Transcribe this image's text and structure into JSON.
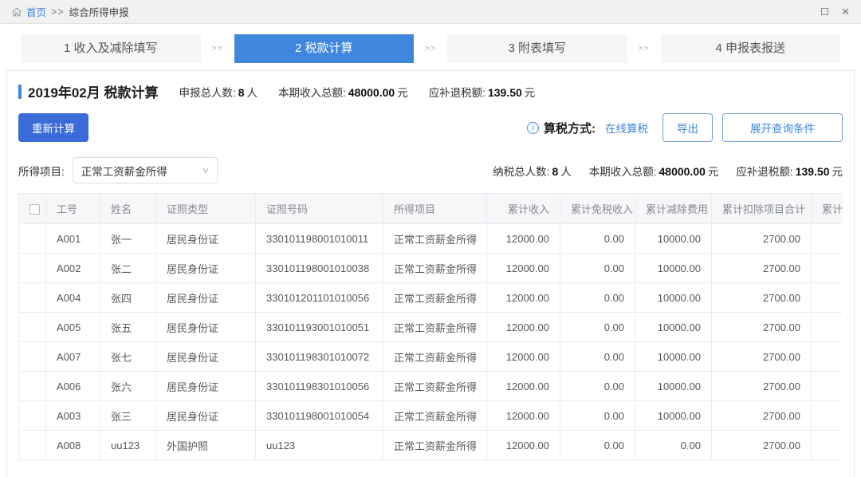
{
  "colors": {
    "accent_blue": "#3e86de",
    "primary_button_blue": "#3a6bd8",
    "table_header_bg": "#f6f7f9",
    "topbar_bg": "#f1f1f2"
  },
  "breadcrumb": {
    "home": "首页",
    "separator": ">>",
    "current": "综合所得申报"
  },
  "window_controls": {
    "close": "✕"
  },
  "steps": {
    "separator": ">>",
    "active_index": 1,
    "items": [
      {
        "label": "1 收入及减除填写"
      },
      {
        "label": "2 税款计算"
      },
      {
        "label": "3 附表填写"
      },
      {
        "label": "4 申报表报送"
      }
    ]
  },
  "period_header": {
    "title": "2019年02月 税款计算",
    "stats": [
      {
        "label": "申报总人数:",
        "value": "8",
        "unit": "人"
      },
      {
        "label": "本期收入总额:",
        "value": "48000.00",
        "unit": "元"
      },
      {
        "label": "应补退税额:",
        "value": "139.50",
        "unit": "元"
      }
    ]
  },
  "toolbar": {
    "recalculate_label": "重新计算",
    "info_icon": "i",
    "tax_mode_label": "算税方式:",
    "tax_mode_value": "在线算税",
    "export_label": "导出",
    "expand_query_label": "展开查询条件"
  },
  "filter": {
    "label": "所得项目:",
    "selected_option": "正常工资薪金所得",
    "chevron": "∨",
    "stats": [
      {
        "label": "纳税总人数:",
        "value": "8",
        "unit": "人"
      },
      {
        "label": "本期收入总额:",
        "value": "48000.00",
        "unit": "元"
      },
      {
        "label": "应补退税额:",
        "value": "139.50",
        "unit": "元"
      }
    ]
  },
  "table": {
    "columns": [
      "工号",
      "姓名",
      "证照类型",
      "证照号码",
      "所得项目",
      "累计收入",
      "累计免税收入",
      "累计减除费用",
      "累计扣除项目合计",
      "累计准"
    ],
    "rows": [
      [
        "A001",
        "张一",
        "居民身份证",
        "330101198001010011",
        "正常工资薪金所得",
        "12000.00",
        "0.00",
        "10000.00",
        "2700.00",
        ""
      ],
      [
        "A002",
        "张二",
        "居民身份证",
        "330101198001010038",
        "正常工资薪金所得",
        "12000.00",
        "0.00",
        "10000.00",
        "2700.00",
        ""
      ],
      [
        "A004",
        "张四",
        "居民身份证",
        "330101201101010056",
        "正常工资薪金所得",
        "12000.00",
        "0.00",
        "10000.00",
        "2700.00",
        ""
      ],
      [
        "A005",
        "张五",
        "居民身份证",
        "330101193001010051",
        "正常工资薪金所得",
        "12000.00",
        "0.00",
        "10000.00",
        "2700.00",
        ""
      ],
      [
        "A007",
        "张七",
        "居民身份证",
        "330101198301010072",
        "正常工资薪金所得",
        "12000.00",
        "0.00",
        "10000.00",
        "2700.00",
        ""
      ],
      [
        "A006",
        "张六",
        "居民身份证",
        "330101198301010056",
        "正常工资薪金所得",
        "12000.00",
        "0.00",
        "10000.00",
        "2700.00",
        ""
      ],
      [
        "A003",
        "张三",
        "居民身份证",
        "330101198001010054",
        "正常工资薪金所得",
        "12000.00",
        "0.00",
        "10000.00",
        "2700.00",
        ""
      ],
      [
        "A008",
        "uu123",
        "外国护照",
        "uu123",
        "正常工资薪金所得",
        "12000.00",
        "0.00",
        "0.00",
        "2700.00",
        ""
      ]
    ]
  }
}
